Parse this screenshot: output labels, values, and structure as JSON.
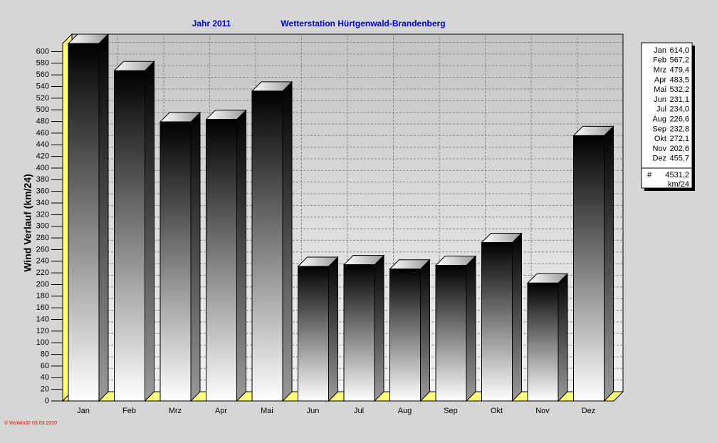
{
  "chart_data": {
    "type": "bar3d",
    "title": "Jahr  2011",
    "subtitle": "Wetterstation Hürtgenwald-Brandenberg",
    "y_label": "Wind Verlauf  (km/24)",
    "footer": "© WsWin32  03.03.2020",
    "categories": [
      "Jan",
      "Feb",
      "Mrz",
      "Apr",
      "Mai",
      "Jun",
      "Jul",
      "Aug",
      "Sep",
      "Okt",
      "Nov",
      "Dez"
    ],
    "values": [
      614.0,
      567.2,
      479.4,
      483.5,
      532.2,
      231.1,
      234.0,
      226.6,
      232.8,
      272.1,
      202.6,
      455.7
    ],
    "value_labels": [
      "614,0",
      "567,2",
      "479,4",
      "483,5",
      "532,2",
      "231,1",
      "234,0",
      "226,6",
      "232,8",
      "272,1",
      "202,6",
      "455,7"
    ],
    "total": {
      "value": 4531.2,
      "label": "4531,2"
    },
    "total_symbol": "#",
    "total_unit": "km/24",
    "ylim": [
      0,
      614
    ],
    "yticks": [
      0,
      20,
      40,
      60,
      80,
      100,
      120,
      140,
      160,
      180,
      200,
      220,
      240,
      260,
      280,
      300,
      320,
      340,
      360,
      380,
      400,
      420,
      440,
      460,
      480,
      500,
      520,
      540,
      560,
      580,
      600
    ],
    "grid": true
  }
}
